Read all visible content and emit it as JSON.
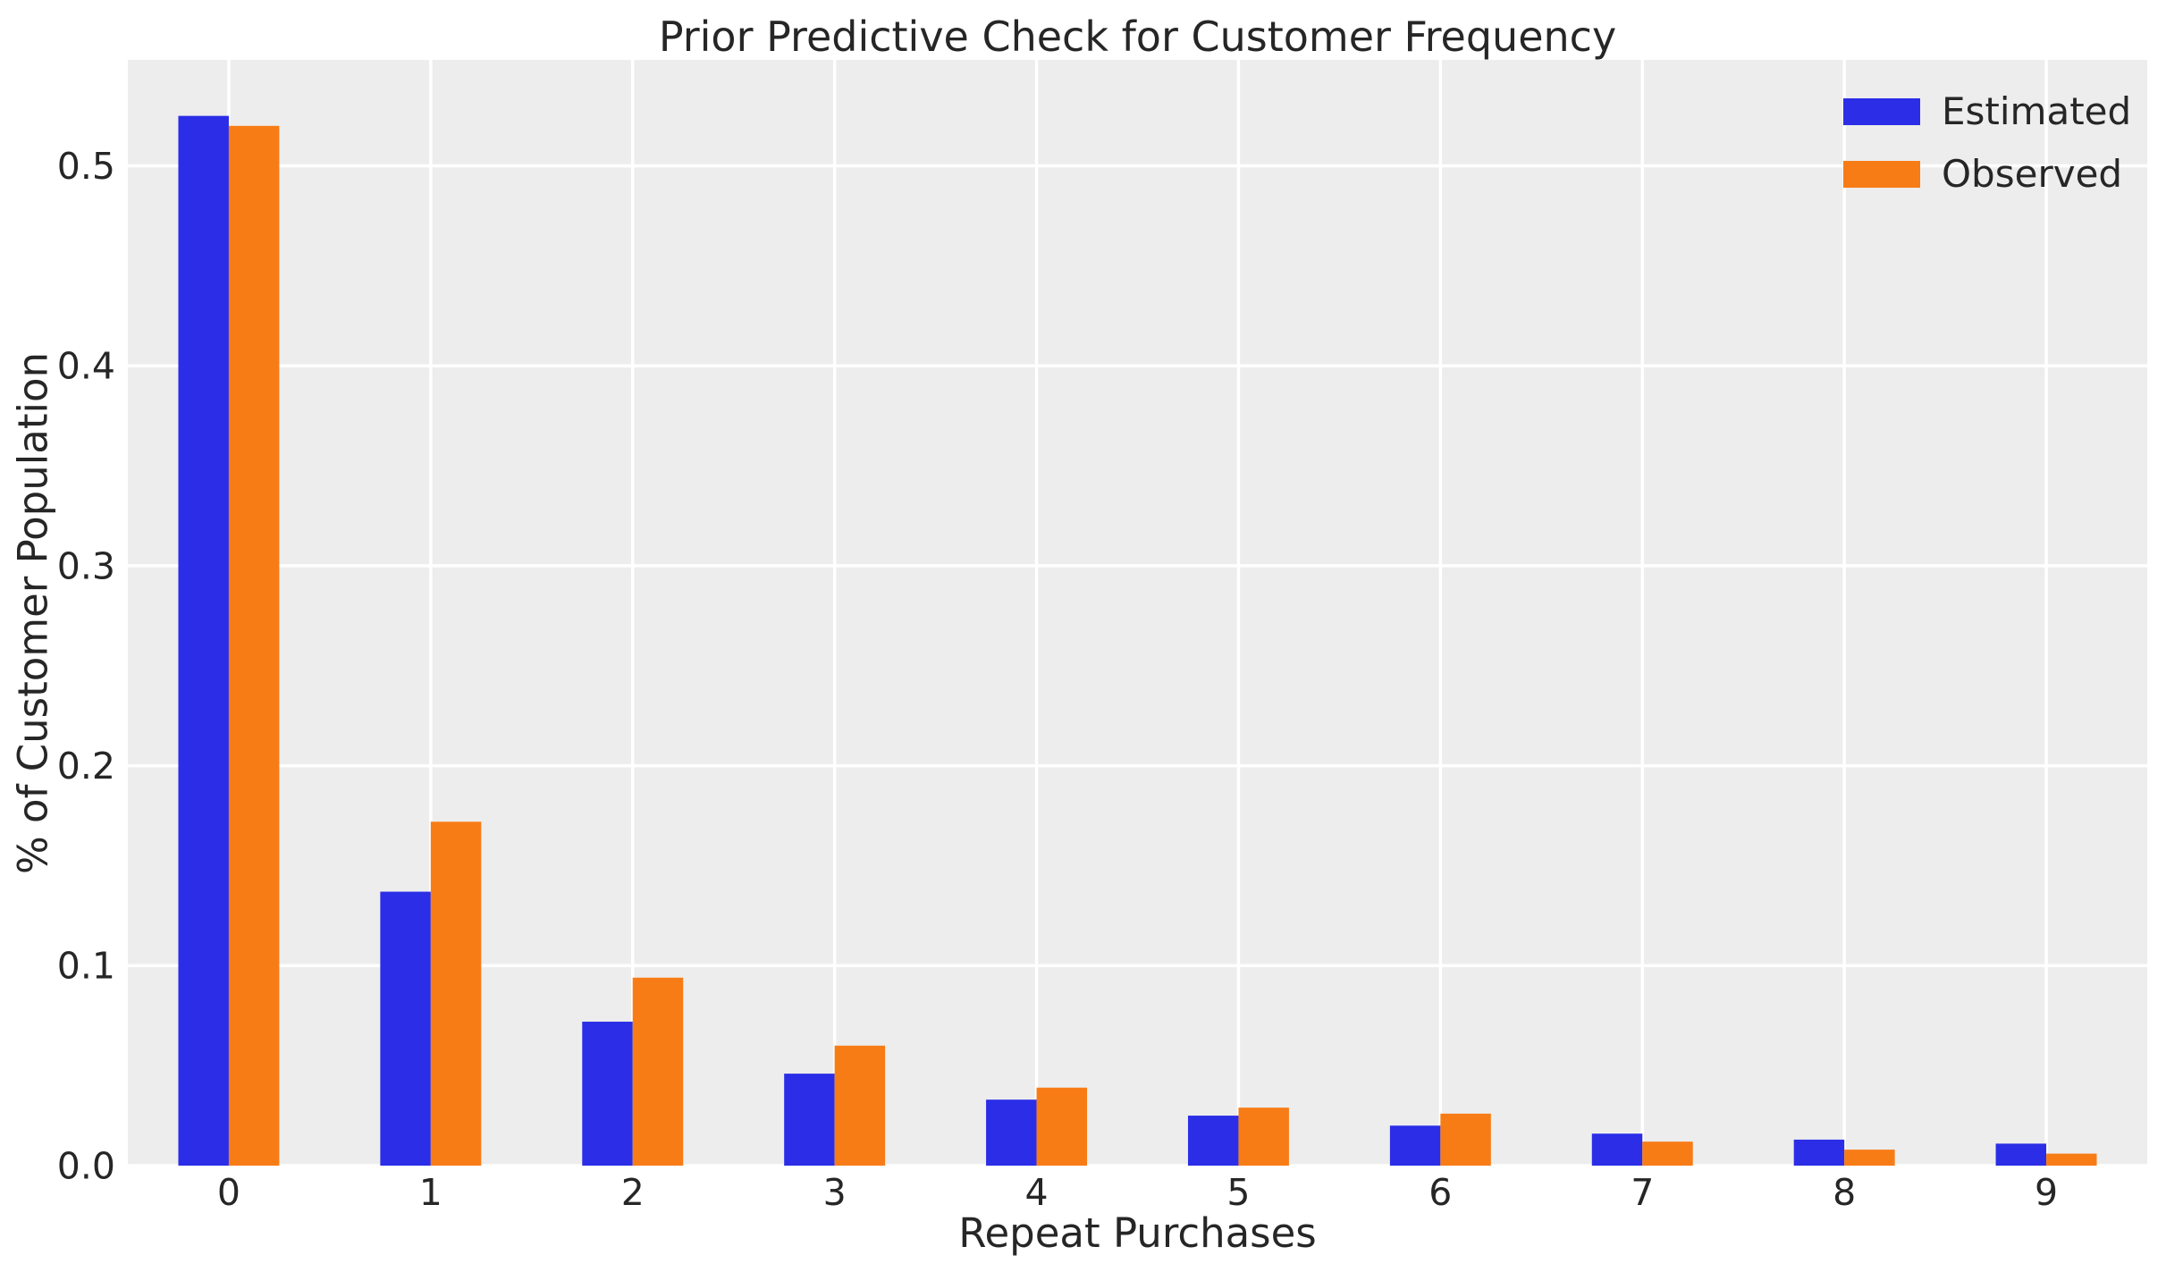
{
  "chart_data": {
    "type": "bar",
    "title": "Prior Predictive Check for Customer Frequency",
    "xlabel": "Repeat Purchases",
    "ylabel": "% of Customer Population",
    "categories": [
      "0",
      "1",
      "2",
      "3",
      "4",
      "5",
      "6",
      "7",
      "8",
      "9"
    ],
    "series": [
      {
        "name": "Estimated",
        "color": "#2b2ee6",
        "values": [
          0.525,
          0.137,
          0.072,
          0.046,
          0.033,
          0.025,
          0.02,
          0.016,
          0.013,
          0.011
        ]
      },
      {
        "name": "Observed",
        "color": "#f87c16",
        "values": [
          0.52,
          0.172,
          0.094,
          0.06,
          0.039,
          0.029,
          0.026,
          0.012,
          0.008,
          0.006
        ]
      }
    ],
    "xlim": [
      -0.5,
      9.5
    ],
    "ylim": [
      0,
      0.553
    ],
    "yticks": {
      "values": [
        0.0,
        0.1,
        0.2,
        0.3,
        0.4,
        0.5
      ],
      "labels": [
        "0.0",
        "0.1",
        "0.2",
        "0.3",
        "0.4",
        "0.5"
      ]
    },
    "grid": true,
    "bar_width_units": 0.25,
    "legend": {
      "position": "upper right",
      "frame": false
    },
    "style": {
      "figure_background": "#ffffff",
      "plot_background": "#ededed",
      "grid_color": "#ffffff",
      "text_color": "#262626"
    }
  }
}
